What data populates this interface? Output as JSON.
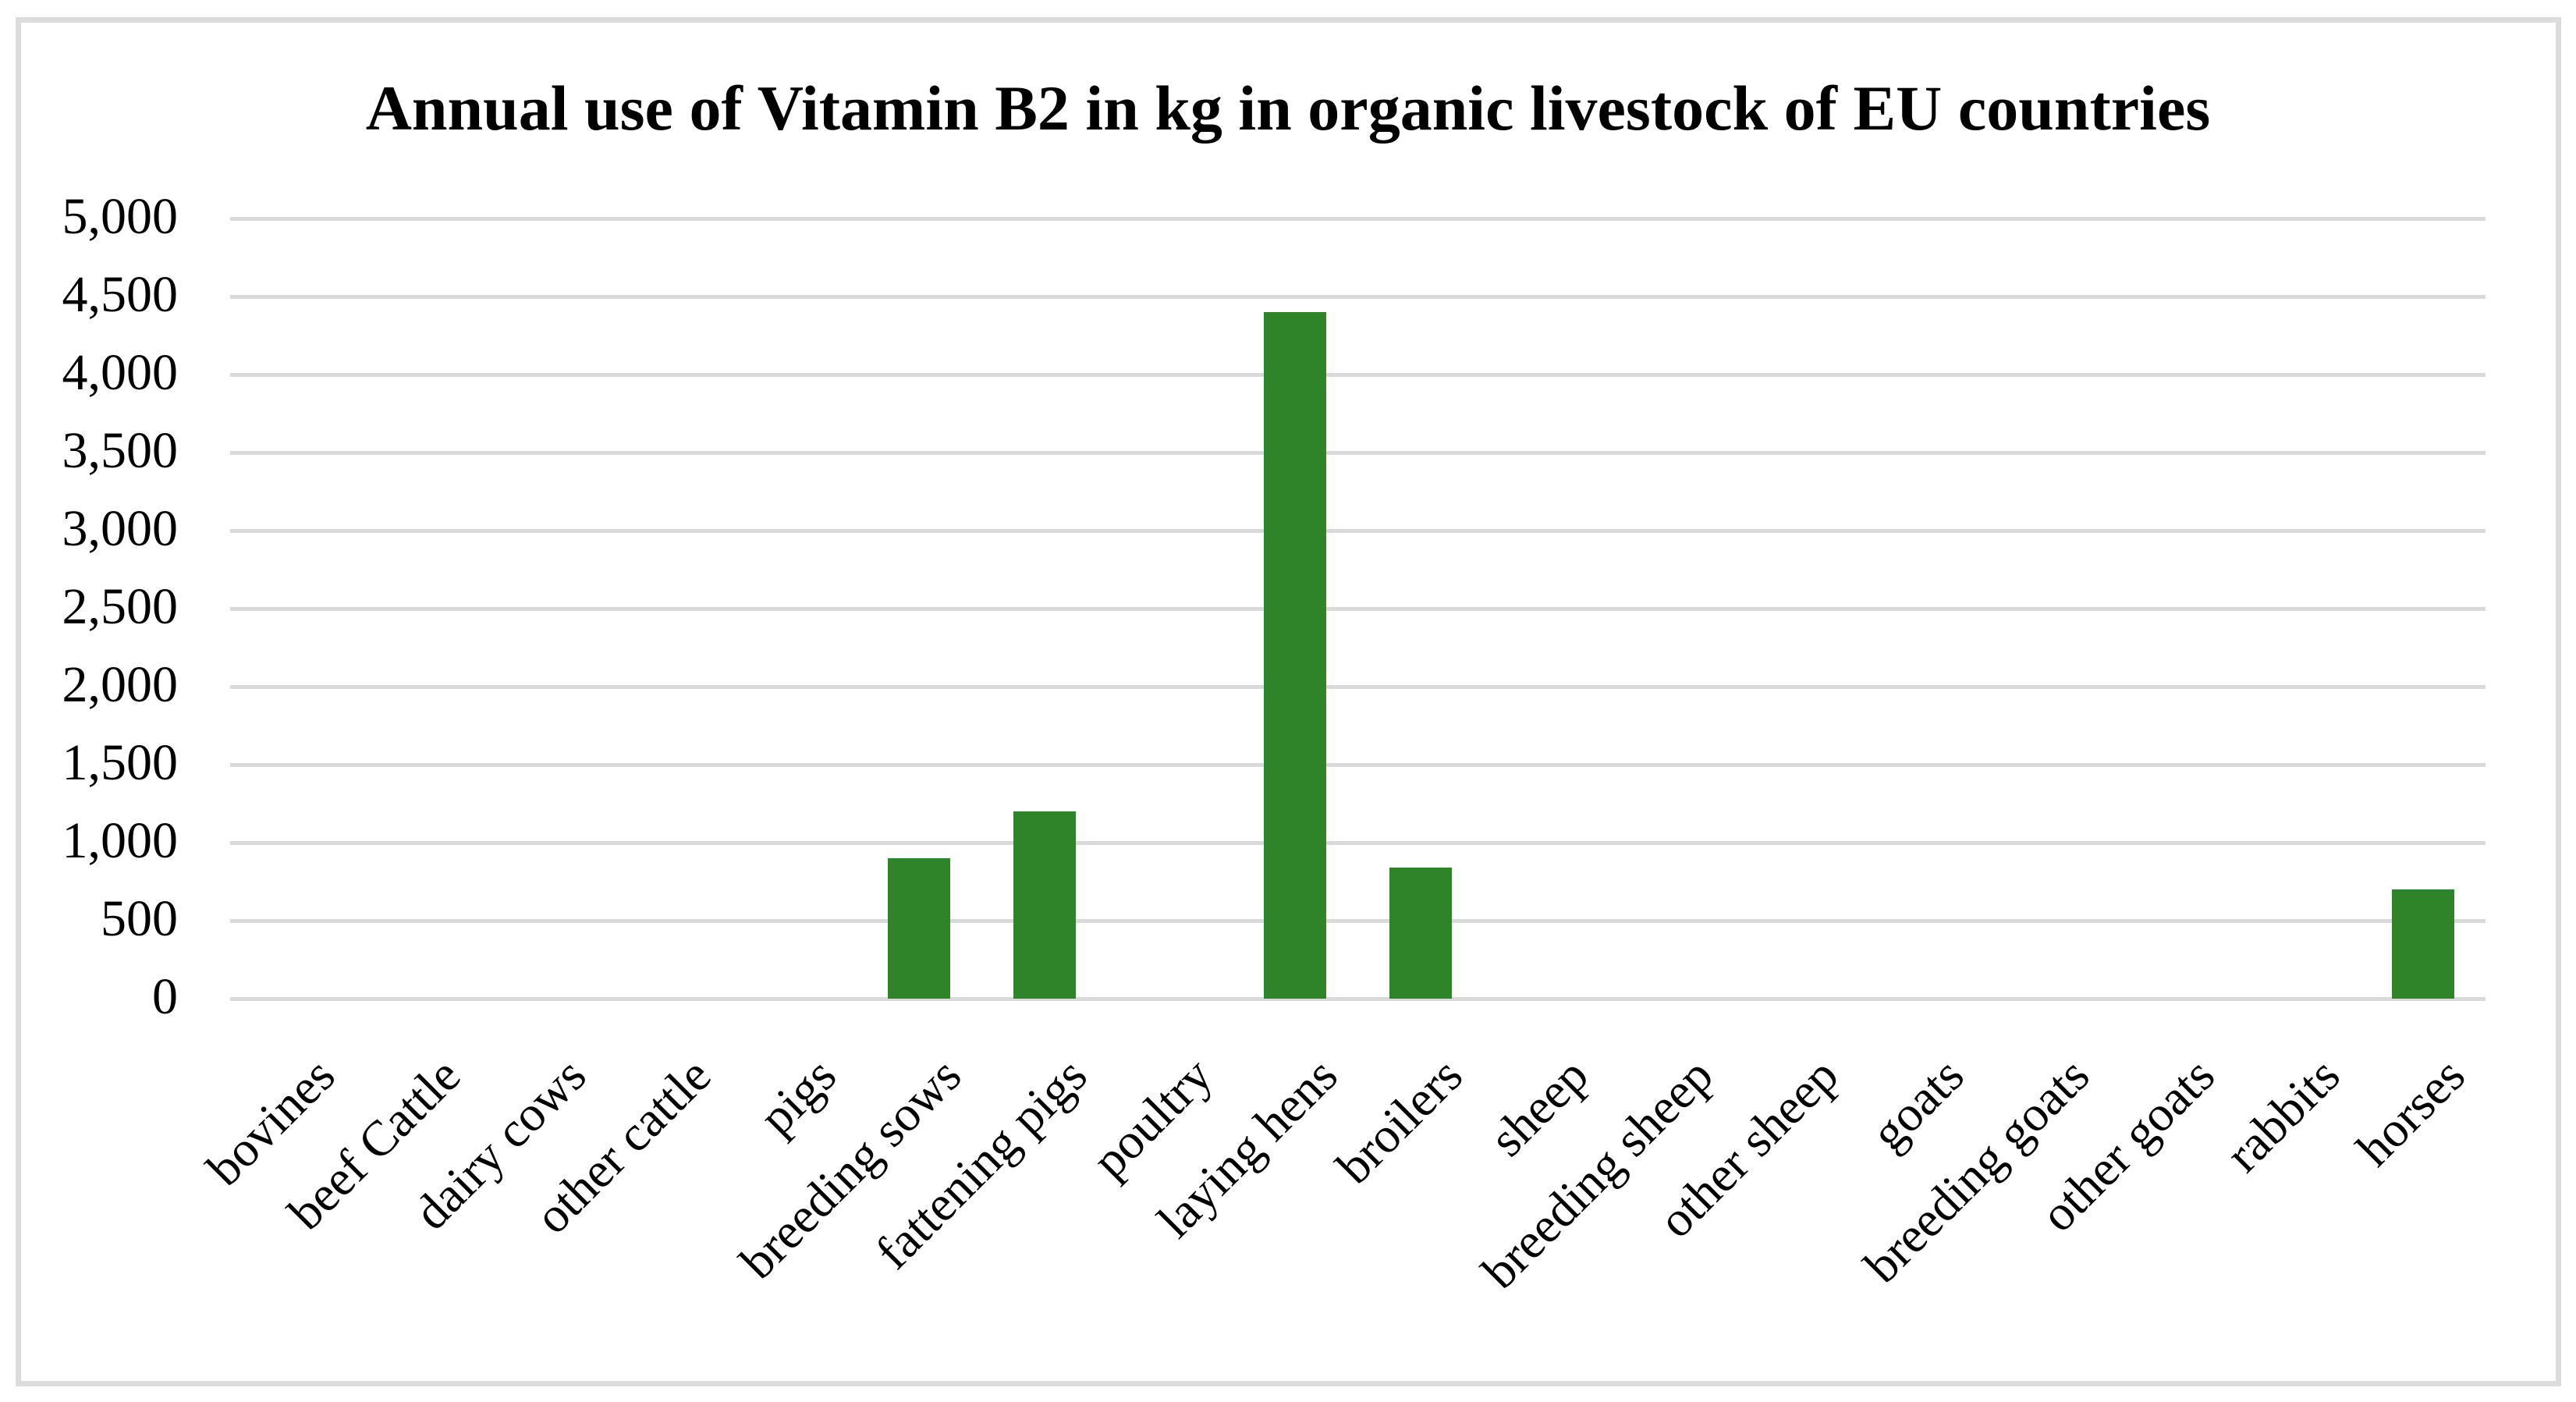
{
  "chart_data": {
    "type": "bar",
    "title": "Annual use of Vitamin B2 in kg in organic livestock of EU countries",
    "categories": [
      "bovines",
      "beef Cattle",
      "dairy cows",
      "other cattle",
      "pigs",
      "breeding sows",
      "fattening pigs",
      "poultry",
      "laying hens",
      "broilers",
      "sheep",
      "breeding sheep",
      "other sheep",
      "goats",
      "breeding goats",
      "other goats",
      "rabbits",
      "horses"
    ],
    "values": [
      0,
      0,
      0,
      0,
      0,
      900,
      1200,
      0,
      4400,
      840,
      0,
      0,
      0,
      0,
      0,
      0,
      0,
      700
    ],
    "xlabel": "",
    "ylabel": "",
    "ylim": [
      0,
      5000
    ],
    "ytick_step": 500,
    "ytick_labels": [
      "0",
      "500",
      "1,000",
      "1,500",
      "2,000",
      "2,500",
      "3,000",
      "3,500",
      "4,000",
      "4,500",
      "5,000"
    ],
    "grid": true,
    "legend_position": "none",
    "bar_color": "#2F8428",
    "gridline_color": "#d9d9d9",
    "border_color": "#dcdcdc",
    "text_color": "#000000"
  }
}
